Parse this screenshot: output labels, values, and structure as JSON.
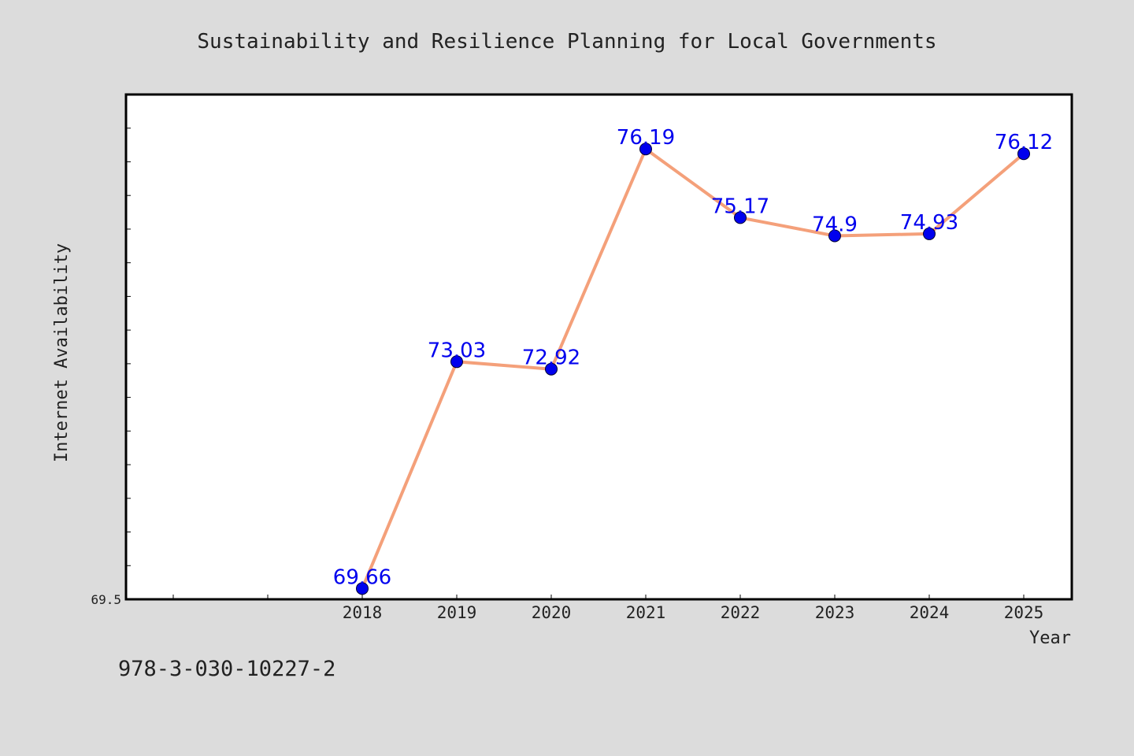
{
  "chart_data": {
    "type": "line",
    "title": "Sustainability and Resilience Planning for Local Governments",
    "xlabel": "Year",
    "ylabel": "Internet Availability",
    "categories": [
      "2018",
      "2019",
      "2020",
      "2021",
      "2022",
      "2023",
      "2024",
      "2025"
    ],
    "series": [
      {
        "values": [
          69.66,
          73.03,
          72.92,
          76.19,
          75.17,
          74.9,
          74.93,
          76.12
        ],
        "labels": [
          "69.66",
          "73.03",
          "72.92",
          "76.19",
          "75.17",
          "74.9",
          "74.93",
          "76.12"
        ],
        "line_color": "#f4a07a",
        "marker_color": "#0000ee",
        "label_color": "#0000ee"
      }
    ],
    "y_tick_labels": [
      "69.5"
    ],
    "ylim": [
      69.5,
      77.0
    ],
    "grid": false,
    "legend": "none"
  },
  "footer_text": "978-3-030-10227-2",
  "colors": {
    "background": "#dcdcdc",
    "plot_background": "#ffffff",
    "axis": "#000000"
  }
}
